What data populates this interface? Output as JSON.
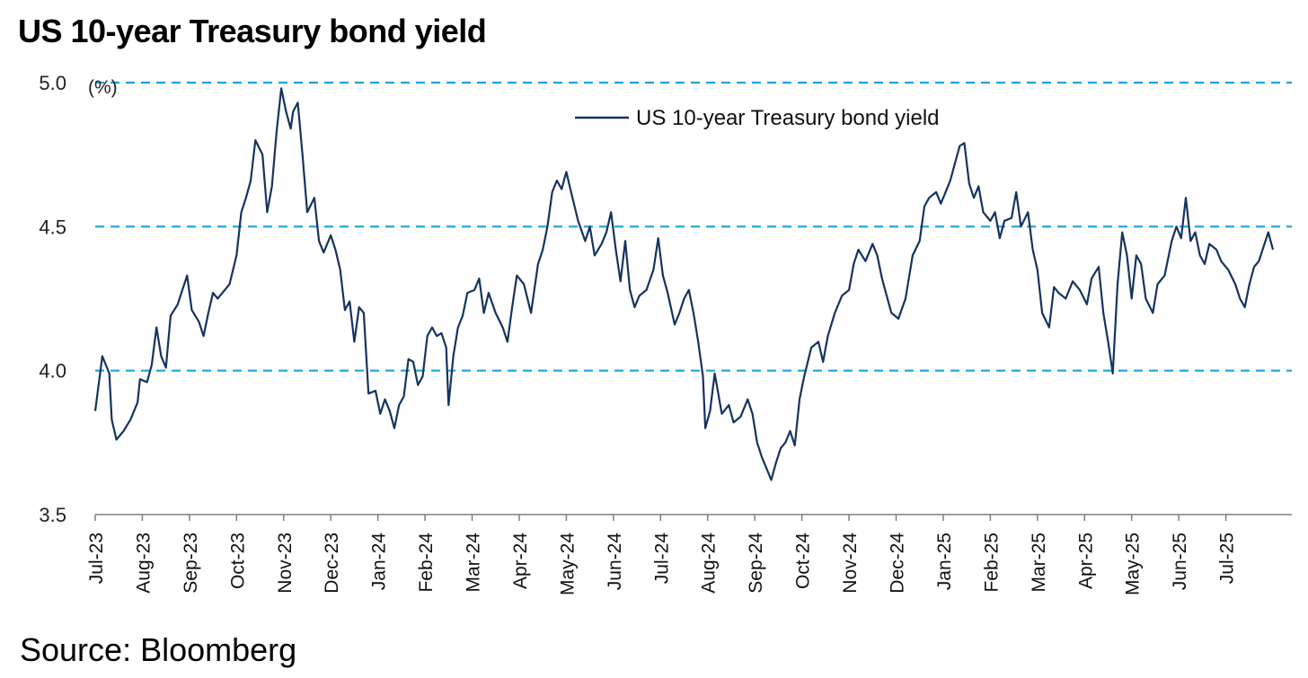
{
  "chart_data": {
    "type": "line",
    "title": "US 10-year Treasury bond yield",
    "source": "Source: Bloomberg",
    "unit_label": "(%)",
    "ylim": [
      3.5,
      5.0
    ],
    "y_ticks": [
      "3.5",
      "4.0",
      "4.5",
      "5.0"
    ],
    "y_gridlines": [
      4.0,
      4.5,
      5.0
    ],
    "x_range": [
      0,
      25.4
    ],
    "categories": [
      "Jul-23",
      "Aug-23",
      "Sep-23",
      "Oct-23",
      "Nov-23",
      "Dec-23",
      "Jan-24",
      "Feb-24",
      "Mar-24",
      "Apr-24",
      "May-24",
      "Jun-24",
      "Jul-24",
      "Aug-24",
      "Sep-24",
      "Oct-24",
      "Nov-24",
      "Dec-24",
      "Jan-25",
      "Feb-25",
      "Mar-25",
      "Apr-25",
      "May-25",
      "Jun-25",
      "Jul-25"
    ],
    "legend": {
      "label": "US 10-year Treasury bond yield",
      "position": "top-center"
    },
    "series": [
      {
        "name": "US 10-year Treasury bond yield",
        "color": "#15335f",
        "points": [
          [
            0.0,
            3.86
          ],
          [
            0.15,
            4.05
          ],
          [
            0.3,
            3.99
          ],
          [
            0.35,
            3.83
          ],
          [
            0.45,
            3.76
          ],
          [
            0.6,
            3.79
          ],
          [
            0.75,
            3.83
          ],
          [
            0.9,
            3.89
          ],
          [
            0.95,
            3.97
          ],
          [
            1.1,
            3.96
          ],
          [
            1.2,
            4.02
          ],
          [
            1.3,
            4.15
          ],
          [
            1.4,
            4.05
          ],
          [
            1.5,
            4.01
          ],
          [
            1.6,
            4.19
          ],
          [
            1.75,
            4.23
          ],
          [
            1.85,
            4.28
          ],
          [
            1.95,
            4.33
          ],
          [
            2.05,
            4.21
          ],
          [
            2.2,
            4.17
          ],
          [
            2.3,
            4.12
          ],
          [
            2.4,
            4.2
          ],
          [
            2.5,
            4.27
          ],
          [
            2.6,
            4.25
          ],
          [
            2.75,
            4.28
          ],
          [
            2.85,
            4.3
          ],
          [
            3.0,
            4.4
          ],
          [
            3.1,
            4.55
          ],
          [
            3.2,
            4.6
          ],
          [
            3.3,
            4.66
          ],
          [
            3.4,
            4.8
          ],
          [
            3.55,
            4.75
          ],
          [
            3.65,
            4.55
          ],
          [
            3.75,
            4.64
          ],
          [
            3.85,
            4.83
          ],
          [
            3.95,
            4.98
          ],
          [
            4.05,
            4.9
          ],
          [
            4.15,
            4.84
          ],
          [
            4.2,
            4.9
          ],
          [
            4.3,
            4.93
          ],
          [
            4.4,
            4.75
          ],
          [
            4.5,
            4.55
          ],
          [
            4.65,
            4.6
          ],
          [
            4.75,
            4.45
          ],
          [
            4.85,
            4.41
          ],
          [
            5.0,
            4.47
          ],
          [
            5.1,
            4.42
          ],
          [
            5.2,
            4.35
          ],
          [
            5.3,
            4.21
          ],
          [
            5.4,
            4.24
          ],
          [
            5.5,
            4.1
          ],
          [
            5.6,
            4.22
          ],
          [
            5.7,
            4.2
          ],
          [
            5.8,
            3.92
          ],
          [
            5.95,
            3.93
          ],
          [
            6.05,
            3.85
          ],
          [
            6.15,
            3.9
          ],
          [
            6.25,
            3.86
          ],
          [
            6.35,
            3.8
          ],
          [
            6.45,
            3.88
          ],
          [
            6.55,
            3.91
          ],
          [
            6.65,
            4.04
          ],
          [
            6.75,
            4.03
          ],
          [
            6.85,
            3.95
          ],
          [
            6.95,
            3.98
          ],
          [
            7.05,
            4.12
          ],
          [
            7.15,
            4.15
          ],
          [
            7.25,
            4.12
          ],
          [
            7.35,
            4.13
          ],
          [
            7.45,
            4.08
          ],
          [
            7.5,
            3.88
          ],
          [
            7.6,
            4.05
          ],
          [
            7.7,
            4.15
          ],
          [
            7.8,
            4.19
          ],
          [
            7.9,
            4.27
          ],
          [
            8.05,
            4.28
          ],
          [
            8.15,
            4.32
          ],
          [
            8.25,
            4.2
          ],
          [
            8.35,
            4.27
          ],
          [
            8.5,
            4.2
          ],
          [
            8.65,
            4.15
          ],
          [
            8.75,
            4.1
          ],
          [
            8.85,
            4.22
          ],
          [
            8.95,
            4.33
          ],
          [
            9.1,
            4.3
          ],
          [
            9.25,
            4.2
          ],
          [
            9.4,
            4.37
          ],
          [
            9.5,
            4.42
          ],
          [
            9.6,
            4.5
          ],
          [
            9.7,
            4.62
          ],
          [
            9.8,
            4.66
          ],
          [
            9.9,
            4.63
          ],
          [
            10.0,
            4.69
          ],
          [
            10.1,
            4.62
          ],
          [
            10.25,
            4.52
          ],
          [
            10.4,
            4.45
          ],
          [
            10.5,
            4.5
          ],
          [
            10.6,
            4.4
          ],
          [
            10.75,
            4.44
          ],
          [
            10.85,
            4.48
          ],
          [
            10.95,
            4.55
          ],
          [
            11.05,
            4.42
          ],
          [
            11.15,
            4.31
          ],
          [
            11.25,
            4.45
          ],
          [
            11.35,
            4.28
          ],
          [
            11.45,
            4.22
          ],
          [
            11.55,
            4.26
          ],
          [
            11.7,
            4.28
          ],
          [
            11.85,
            4.35
          ],
          [
            11.95,
            4.46
          ],
          [
            12.05,
            4.33
          ],
          [
            12.15,
            4.27
          ],
          [
            12.3,
            4.16
          ],
          [
            12.4,
            4.2
          ],
          [
            12.5,
            4.25
          ],
          [
            12.6,
            4.28
          ],
          [
            12.7,
            4.2
          ],
          [
            12.8,
            4.1
          ],
          [
            12.9,
            3.98
          ],
          [
            12.95,
            3.8
          ],
          [
            13.05,
            3.86
          ],
          [
            13.15,
            3.99
          ],
          [
            13.3,
            3.85
          ],
          [
            13.45,
            3.88
          ],
          [
            13.55,
            3.82
          ],
          [
            13.7,
            3.84
          ],
          [
            13.85,
            3.9
          ],
          [
            13.95,
            3.85
          ],
          [
            14.05,
            3.75
          ],
          [
            14.15,
            3.7
          ],
          [
            14.25,
            3.66
          ],
          [
            14.35,
            3.62
          ],
          [
            14.45,
            3.68
          ],
          [
            14.55,
            3.73
          ],
          [
            14.65,
            3.75
          ],
          [
            14.75,
            3.79
          ],
          [
            14.85,
            3.74
          ],
          [
            14.95,
            3.9
          ],
          [
            15.05,
            3.98
          ],
          [
            15.2,
            4.08
          ],
          [
            15.35,
            4.1
          ],
          [
            15.45,
            4.03
          ],
          [
            15.55,
            4.12
          ],
          [
            15.7,
            4.2
          ],
          [
            15.85,
            4.26
          ],
          [
            16.0,
            4.28
          ],
          [
            16.1,
            4.37
          ],
          [
            16.2,
            4.42
          ],
          [
            16.35,
            4.38
          ],
          [
            16.5,
            4.44
          ],
          [
            16.6,
            4.4
          ],
          [
            16.7,
            4.32
          ],
          [
            16.8,
            4.26
          ],
          [
            16.9,
            4.2
          ],
          [
            17.05,
            4.18
          ],
          [
            17.2,
            4.25
          ],
          [
            17.35,
            4.4
          ],
          [
            17.5,
            4.45
          ],
          [
            17.6,
            4.57
          ],
          [
            17.7,
            4.6
          ],
          [
            17.85,
            4.62
          ],
          [
            17.95,
            4.58
          ],
          [
            18.05,
            4.62
          ],
          [
            18.15,
            4.66
          ],
          [
            18.25,
            4.72
          ],
          [
            18.35,
            4.78
          ],
          [
            18.45,
            4.79
          ],
          [
            18.55,
            4.65
          ],
          [
            18.65,
            4.6
          ],
          [
            18.75,
            4.64
          ],
          [
            18.85,
            4.55
          ],
          [
            19.0,
            4.52
          ],
          [
            19.1,
            4.55
          ],
          [
            19.2,
            4.46
          ],
          [
            19.3,
            4.52
          ],
          [
            19.45,
            4.53
          ],
          [
            19.55,
            4.62
          ],
          [
            19.65,
            4.5
          ],
          [
            19.8,
            4.55
          ],
          [
            19.9,
            4.42
          ],
          [
            20.0,
            4.35
          ],
          [
            20.1,
            4.2
          ],
          [
            20.25,
            4.15
          ],
          [
            20.35,
            4.29
          ],
          [
            20.45,
            4.27
          ],
          [
            20.6,
            4.25
          ],
          [
            20.75,
            4.31
          ],
          [
            20.9,
            4.28
          ],
          [
            21.05,
            4.23
          ],
          [
            21.15,
            4.32
          ],
          [
            21.3,
            4.36
          ],
          [
            21.4,
            4.2
          ],
          [
            21.5,
            4.1
          ],
          [
            21.6,
            3.99
          ],
          [
            21.7,
            4.3
          ],
          [
            21.8,
            4.48
          ],
          [
            21.9,
            4.4
          ],
          [
            22.0,
            4.25
          ],
          [
            22.1,
            4.4
          ],
          [
            22.2,
            4.37
          ],
          [
            22.3,
            4.25
          ],
          [
            22.45,
            4.2
          ],
          [
            22.55,
            4.3
          ],
          [
            22.7,
            4.33
          ],
          [
            22.85,
            4.45
          ],
          [
            22.95,
            4.5
          ],
          [
            23.05,
            4.46
          ],
          [
            23.15,
            4.6
          ],
          [
            23.25,
            4.45
          ],
          [
            23.35,
            4.48
          ],
          [
            23.45,
            4.4
          ],
          [
            23.55,
            4.37
          ],
          [
            23.65,
            4.44
          ],
          [
            23.8,
            4.42
          ],
          [
            23.9,
            4.38
          ],
          [
            24.05,
            4.35
          ],
          [
            24.2,
            4.3
          ],
          [
            24.3,
            4.25
          ],
          [
            24.4,
            4.22
          ],
          [
            24.5,
            4.3
          ],
          [
            24.6,
            4.36
          ],
          [
            24.7,
            4.38
          ],
          [
            24.8,
            4.43
          ],
          [
            24.9,
            4.48
          ],
          [
            25.0,
            4.42
          ]
        ]
      }
    ]
  }
}
